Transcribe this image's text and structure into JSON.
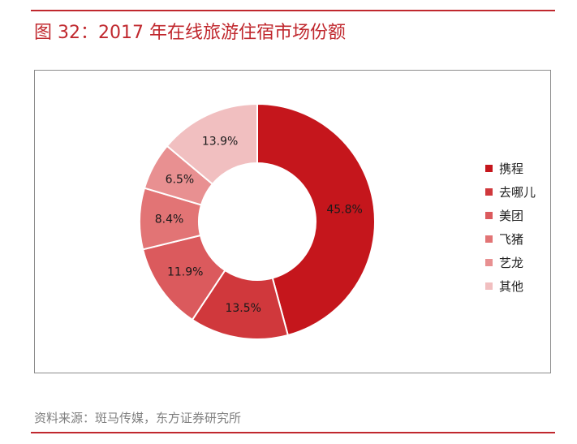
{
  "title": "图 32：2017 年在线旅游住宿市场份额",
  "source": "资料来源：斑马传媒，东方证券研究所",
  "chart_data": {
    "type": "pie",
    "subtype": "donut",
    "categories": [
      "携程",
      "去哪儿",
      "美团",
      "飞猪",
      "艺龙",
      "其他"
    ],
    "values": [
      45.8,
      13.5,
      11.9,
      8.4,
      6.5,
      13.9
    ],
    "labels": [
      "45.8%",
      "13.5%",
      "11.9%",
      "8.4%",
      "6.5%",
      "13.9%"
    ],
    "colors": [
      "#c5161c",
      "#d0383c",
      "#db5a5d",
      "#e27475",
      "#e89091",
      "#f1bfc0"
    ],
    "legend_position": "right",
    "start": "top",
    "direction": "clockwise"
  }
}
